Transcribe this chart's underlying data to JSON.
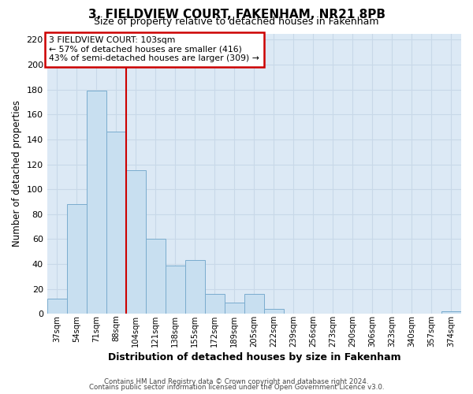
{
  "title": "3, FIELDVIEW COURT, FAKENHAM, NR21 8PB",
  "subtitle": "Size of property relative to detached houses in Fakenham",
  "xlabel": "Distribution of detached houses by size in Fakenham",
  "ylabel": "Number of detached properties",
  "bar_labels": [
    "37sqm",
    "54sqm",
    "71sqm",
    "88sqm",
    "104sqm",
    "121sqm",
    "138sqm",
    "155sqm",
    "172sqm",
    "189sqm",
    "205sqm",
    "222sqm",
    "239sqm",
    "256sqm",
    "273sqm",
    "290sqm",
    "306sqm",
    "323sqm",
    "340sqm",
    "357sqm",
    "374sqm"
  ],
  "bar_values": [
    12,
    88,
    179,
    146,
    115,
    60,
    39,
    43,
    16,
    9,
    16,
    4,
    0,
    0,
    0,
    0,
    0,
    0,
    0,
    0,
    2
  ],
  "bar_color": "#c8dff0",
  "bar_edge_color": "#7aacce",
  "property_line_color": "#cc0000",
  "annotation_title": "3 FIELDVIEW COURT: 103sqm",
  "annotation_line1": "← 57% of detached houses are smaller (416)",
  "annotation_line2": "43% of semi-detached houses are larger (309) →",
  "annotation_box_color": "#ffffff",
  "annotation_box_edge": "#cc0000",
  "ylim": [
    0,
    225
  ],
  "yticks": [
    0,
    20,
    40,
    60,
    80,
    100,
    120,
    140,
    160,
    180,
    200,
    220
  ],
  "grid_color": "#c8d8e8",
  "background_color": "#dce9f5",
  "footer1": "Contains HM Land Registry data © Crown copyright and database right 2024.",
  "footer2": "Contains public sector information licensed under the Open Government Licence v3.0."
}
